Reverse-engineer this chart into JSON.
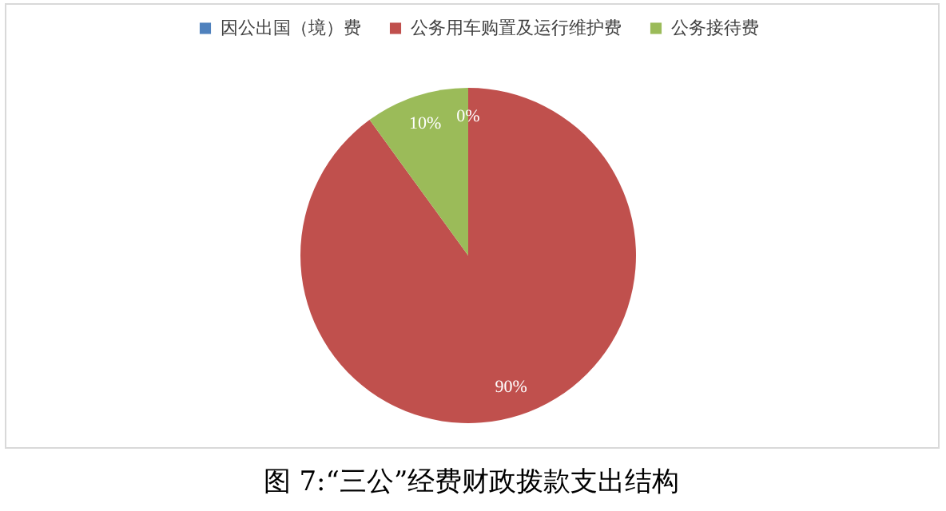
{
  "chart_data": {
    "type": "pie",
    "title": "图 7:“三公”经费财政拨款支出结构",
    "categories": [
      "因公出国（境）费",
      "公务用车购置及运行维护费",
      "公务接待费"
    ],
    "values": [
      0,
      90,
      10
    ],
    "colors": [
      "#4f81bd",
      "#c0504d",
      "#9bbb59"
    ],
    "value_labels": [
      "0%",
      "90%",
      "10%"
    ],
    "legend": "top"
  }
}
